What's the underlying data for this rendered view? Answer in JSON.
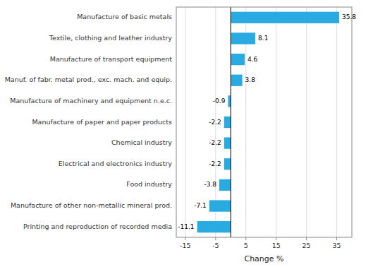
{
  "chart_data": {
    "type": "bar",
    "orientation": "horizontal",
    "categories": [
      "Printing and reproduction of recorded media",
      "Manufacture of other non-metallic mineral prod.",
      "Food industry",
      "Electrical and electronics industry",
      "Chemical industry",
      "Manufacture of paper and paper products",
      "Manufacture of machinery and equipment n.e.c.",
      "Manuf. of fabr. metal prod., exc. mach. and equip.",
      "Manufacture of transport equipment",
      "Textile, clothing and leather industry",
      "Manufacture of basic metals"
    ],
    "values": [
      -11.1,
      -7.1,
      -3.8,
      -2.2,
      -2.2,
      -2.2,
      -0.9,
      3.8,
      4.6,
      8.1,
      35.8
    ],
    "color": "#29abe2",
    "xlabel": "Change %",
    "xlim": [
      -18,
      40
    ],
    "xticks": [
      -15,
      -5,
      5,
      15,
      25,
      35
    ],
    "grid": true,
    "data_labels": true
  }
}
